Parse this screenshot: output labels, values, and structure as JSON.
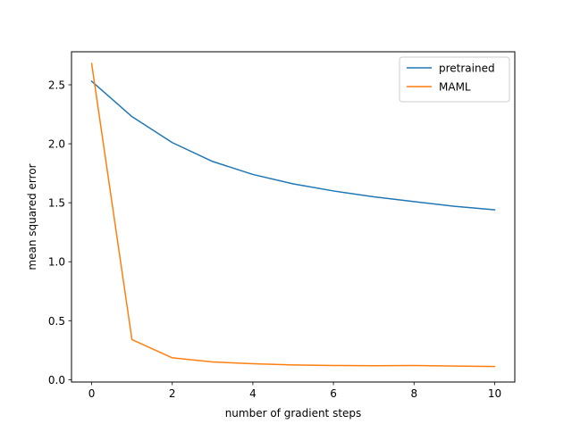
{
  "chart_data": {
    "type": "line",
    "title": "",
    "xlabel": "number of gradient steps",
    "ylabel": "mean squared error",
    "xlim": [
      -0.5,
      10.5
    ],
    "ylim": [
      -0.02,
      2.78
    ],
    "xticks": [
      0,
      2,
      4,
      6,
      8,
      10
    ],
    "yticks": [
      0.0,
      0.5,
      1.0,
      1.5,
      2.0,
      2.5
    ],
    "ytick_labels": [
      "0.0",
      "0.5",
      "1.0",
      "1.5",
      "2.0",
      "2.5"
    ],
    "grid": false,
    "legend_position": "top-right",
    "x": [
      0,
      1,
      2,
      3,
      4,
      5,
      6,
      7,
      8,
      9,
      10
    ],
    "series": [
      {
        "name": "pretrained",
        "color": "#1f77b4",
        "values": [
          2.53,
          2.23,
          2.01,
          1.85,
          1.74,
          1.66,
          1.6,
          1.55,
          1.51,
          1.47,
          1.44
        ]
      },
      {
        "name": "MAML",
        "color": "#ff7f0e",
        "values": [
          2.68,
          0.34,
          0.185,
          0.15,
          0.135,
          0.125,
          0.12,
          0.118,
          0.12,
          0.115,
          0.112
        ]
      }
    ]
  }
}
